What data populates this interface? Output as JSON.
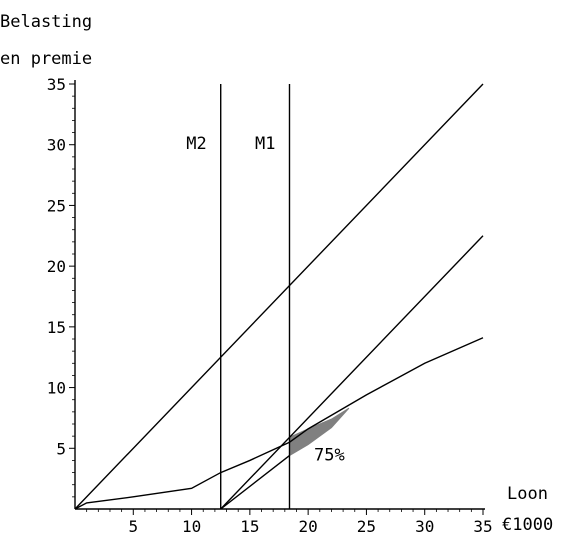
{
  "chart_data": {
    "type": "line",
    "ylabel_line1": "Belasting",
    "ylabel_line2": "en premie",
    "xlabel_line1": "Loon",
    "xlabel_line2": "€1000",
    "xlim": [
      0,
      35
    ],
    "ylim": [
      0,
      35
    ],
    "x_ticks": [
      5,
      10,
      15,
      20,
      25,
      30,
      35
    ],
    "y_ticks": [
      5,
      10,
      15,
      20,
      25,
      30,
      35
    ],
    "grid": false,
    "vertical_lines": [
      {
        "label": "M2",
        "x": 12.5
      },
      {
        "label": "M1",
        "x": 18.4
      }
    ],
    "series": [
      {
        "values_x": [
          0,
          35
        ],
        "values_y": [
          0,
          35
        ]
      },
      {
        "values_x": [
          12.5,
          35
        ],
        "values_y": [
          0,
          22.5
        ]
      },
      {
        "values_x": [
          0,
          1,
          5,
          10,
          12.5,
          15,
          18.4,
          20,
          25,
          30,
          35
        ],
        "values_y": [
          0,
          0.5,
          1,
          1.7,
          3,
          4,
          5.5,
          6.6,
          9.4,
          12,
          14.1
        ]
      },
      {
        "values_x": [
          12.5,
          18.4
        ],
        "values_y": [
          0,
          4.4
        ]
      }
    ],
    "shaded_region": {
      "polygon_x": [
        18.4,
        20,
        22,
        23.5,
        22,
        20,
        18.4
      ],
      "polygon_y": [
        4.4,
        5.3,
        6.7,
        8.3,
        7.4,
        6.6,
        5.9
      ]
    },
    "annotation": {
      "text": "75%",
      "x": 20.5,
      "y": 4
    }
  }
}
